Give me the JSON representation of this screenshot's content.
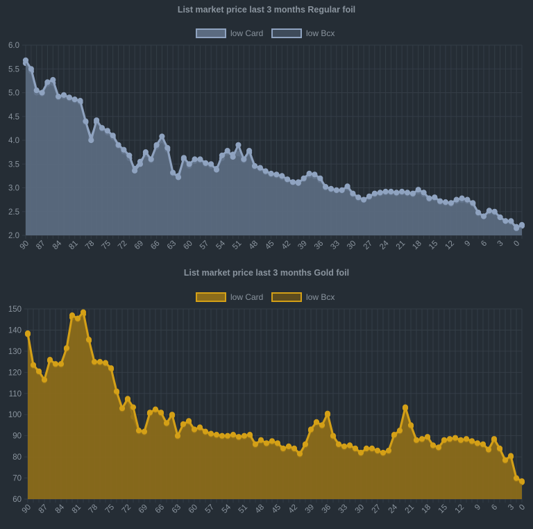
{
  "chart_data": [
    {
      "type": "area",
      "title": "List market price last 3 months Regular foil",
      "legend": {
        "placement": "top-center",
        "entries": [
          {
            "name": "low Card",
            "fill": "#5b6b80",
            "stroke": "#8fa3c0"
          },
          {
            "name": "low Bcx",
            "fill": "#3e4b5a",
            "stroke": "#8fa3c0"
          }
        ]
      },
      "colors": {
        "line": "#8fa3c0",
        "fill": "#5b6b80",
        "point": "#8fa3c0"
      },
      "ylim": [
        2.0,
        6.0
      ],
      "y_ticks": [
        "6.0",
        "5.5",
        "5.0",
        "4.5",
        "4.0",
        "3.5",
        "3.0",
        "2.5",
        "2.0"
      ],
      "x_ticks": [
        "90",
        "87",
        "84",
        "81",
        "78",
        "75",
        "72",
        "69",
        "66",
        "63",
        "60",
        "57",
        "54",
        "51",
        "48",
        "45",
        "42",
        "39",
        "36",
        "33",
        "30",
        "27",
        "24",
        "21",
        "18",
        "15",
        "12",
        "9",
        "6",
        "3",
        "0"
      ],
      "grid": true,
      "series": [
        {
          "name": "low Card",
          "values": [
            5.68,
            5.5,
            5.05,
            5.0,
            5.22,
            5.27,
            4.92,
            4.95,
            4.9,
            4.86,
            4.83,
            4.4,
            4.0,
            4.42,
            4.26,
            4.2,
            4.1,
            3.9,
            3.8,
            3.68,
            3.36,
            3.5,
            3.75,
            3.6,
            3.9,
            4.08,
            3.84,
            3.32,
            3.22,
            3.63,
            3.5,
            3.6,
            3.6,
            3.52,
            3.5,
            3.38,
            3.68,
            3.78,
            3.65,
            3.9,
            3.6,
            3.78,
            3.46,
            3.42,
            3.35,
            3.3,
            3.28,
            3.25,
            3.18,
            3.12,
            3.1,
            3.2,
            3.3,
            3.28,
            3.2,
            3.02,
            2.98,
            2.95,
            2.95,
            3.03,
            2.88,
            2.8,
            2.75,
            2.82,
            2.88,
            2.9,
            2.92,
            2.92,
            2.9,
            2.92,
            2.9,
            2.88,
            2.96,
            2.9,
            2.78,
            2.8,
            2.72,
            2.7,
            2.68,
            2.75,
            2.78,
            2.75,
            2.68,
            2.48,
            2.4,
            2.52,
            2.5,
            2.38,
            2.3,
            2.3,
            2.15,
            2.22
          ]
        },
        {
          "name": "low Bcx",
          "values": [
            5.62,
            5.45,
            5.0,
            4.98,
            5.18,
            5.2,
            4.9,
            4.92,
            4.88,
            4.84,
            4.8,
            4.38,
            4.05,
            4.38,
            4.24,
            4.16,
            4.06,
            3.88,
            3.76,
            3.62,
            3.4,
            3.55,
            3.7,
            3.58,
            3.86,
            4.0,
            3.8,
            3.3,
            3.25,
            3.6,
            3.46,
            3.56,
            3.58,
            3.5,
            3.46,
            3.4,
            3.62,
            3.74,
            3.7,
            3.72,
            3.58,
            3.74,
            3.44,
            3.4,
            3.33,
            3.28,
            3.26,
            3.22,
            3.16,
            3.12,
            3.12,
            3.18,
            3.26,
            3.24,
            3.16,
            3.0,
            2.96,
            2.94,
            2.94,
            3.0,
            2.86,
            2.78,
            2.74,
            2.8,
            2.86,
            2.88,
            2.9,
            2.9,
            2.88,
            2.9,
            2.88,
            2.86,
            2.92,
            2.86,
            2.76,
            2.78,
            2.7,
            2.68,
            2.66,
            2.72,
            2.74,
            2.72,
            2.66,
            2.46,
            2.4,
            2.5,
            2.48,
            2.38,
            2.3,
            2.28,
            2.18,
            2.2
          ]
        }
      ]
    },
    {
      "type": "area",
      "title": "List market price last 3 months Gold foil",
      "legend": {
        "placement": "top-center",
        "entries": [
          {
            "name": "low Card",
            "fill": "#8c6c1a",
            "stroke": "#d4a017"
          },
          {
            "name": "low Bcx",
            "fill": "#5e4c1e",
            "stroke": "#d4a017"
          }
        ]
      },
      "colors": {
        "line": "#d4a017",
        "fill": "#8c6c1a",
        "point": "#d4a017"
      },
      "ylim": [
        60,
        150
      ],
      "y_ticks": [
        "150",
        "140",
        "130",
        "120",
        "110",
        "100",
        "90",
        "80",
        "70",
        "60"
      ],
      "x_ticks": [
        "90",
        "87",
        "84",
        "81",
        "78",
        "75",
        "72",
        "69",
        "66",
        "63",
        "60",
        "57",
        "54",
        "51",
        "48",
        "45",
        "42",
        "39",
        "36",
        "33",
        "30",
        "27",
        "24",
        "21",
        "18",
        "15",
        "12",
        "9",
        "6",
        "3",
        "0"
      ],
      "grid": true,
      "series": [
        {
          "name": "low Card",
          "values": [
            138.5,
            123.5,
            120.5,
            116.5,
            126,
            124,
            124,
            131.5,
            147,
            145.5,
            148.5,
            135.5,
            125,
            125,
            124.5,
            122,
            111,
            103,
            107.5,
            103.5,
            92.5,
            92,
            101,
            102.5,
            101,
            96,
            100,
            90,
            95.5,
            97,
            93,
            94,
            92,
            91,
            90.5,
            90,
            90,
            90.5,
            89.5,
            90,
            90.5,
            86,
            88,
            86.5,
            87.5,
            86.5,
            84,
            85,
            84,
            81.5,
            86,
            93,
            96.5,
            95,
            100.5,
            90,
            86,
            85,
            85.5,
            84,
            82,
            84,
            84,
            83,
            82,
            83,
            90.5,
            92.5,
            103.5,
            95,
            88,
            88.5,
            89.5,
            85.5,
            84.5,
            88,
            88.5,
            89,
            88,
            88.5,
            87.5,
            86.5,
            86,
            83.5,
            88.5,
            84,
            78.5,
            80.5,
            70,
            68.5
          ]
        },
        {
          "name": "low Bcx",
          "values": [
            138,
            123,
            120,
            116,
            125.5,
            123.5,
            123.5,
            131,
            146,
            145,
            147.5,
            135,
            124.5,
            124.5,
            124,
            121.5,
            110.5,
            102.5,
            107,
            99,
            92,
            91.5,
            100.5,
            102,
            100.5,
            95.5,
            99.5,
            89.5,
            95,
            96.5,
            92.5,
            93.5,
            91.5,
            90.5,
            90,
            89.5,
            89.5,
            90,
            89,
            89.5,
            90,
            85.5,
            87.5,
            86,
            87,
            86,
            83.5,
            84.5,
            83.5,
            81,
            85.5,
            92.5,
            96,
            94.5,
            100,
            89.5,
            85.5,
            84.5,
            85,
            83.5,
            81.5,
            83.5,
            83.5,
            82.5,
            81.5,
            82.5,
            90,
            92,
            103,
            94.5,
            87.5,
            88,
            89,
            85,
            84,
            87.5,
            88,
            88.5,
            87.5,
            88,
            87,
            86,
            85.5,
            83,
            88,
            83.5,
            78,
            80,
            69.5,
            68
          ]
        }
      ]
    }
  ]
}
